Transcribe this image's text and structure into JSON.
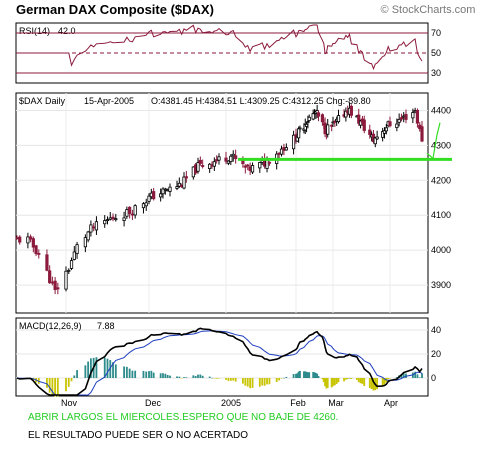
{
  "header": {
    "title": "German DAX Composite ($DAX)",
    "watermark": "© StockCharts.com"
  },
  "rsi_panel": {
    "label": "RSI(14)",
    "value": "42.0",
    "levels": [
      "70",
      "50",
      "30"
    ]
  },
  "price_panel": {
    "name": "$DAX Daily",
    "date": "15-Apr-2005",
    "quote": "O:4381.45 H:4384.51 L:4309.25 C:4312.25 Chg:-89.80",
    "y_ticks": [
      "4400",
      "4300",
      "4200",
      "4100",
      "4000",
      "3900"
    ]
  },
  "macd_panel": {
    "label": "MACD(12,26,9)",
    "value": "7.88",
    "y_ticks": [
      "40",
      "20",
      "0"
    ]
  },
  "x_axis": {
    "labels": [
      "Nov",
      "Dec",
      "2005",
      "Feb",
      "Mar",
      "Apr"
    ]
  },
  "annotations": {
    "line1": "ABRIR LARGOS EL MIERCOLES.ESPERO QUE NO BAJE DE 4260.",
    "line2": "EL RESULTADO PUEDE SER O NO ACERTADO",
    "line1_color": "#22cc22",
    "line2_color": "#000000"
  },
  "colors": {
    "up_candle": "#000000",
    "down_candle": "#8b1a3c",
    "support_line": "#33dd22",
    "rsi_line": "#8b1a3c",
    "macd_line": "#000000",
    "signal_line": "#1f3fbf",
    "histogram": "#2e8b8b",
    "histogram_alt": "#c8c400"
  },
  "chart_data": {
    "type": "candlestick",
    "title": "German DAX Composite ($DAX)",
    "x_labels": [
      "Nov",
      "Dec",
      "2005",
      "Feb",
      "Mar",
      "Apr"
    ],
    "price": {
      "ylim": [
        3820,
        4450
      ],
      "support_level": 4260,
      "last_close": 4312.25,
      "close_path_anchors": [
        {
          "x": "Oct 18 2004",
          "y": 4030
        },
        {
          "x": "Oct 22 2004",
          "y": 3990
        },
        {
          "x": "Oct 27 2004",
          "y": 3900
        },
        {
          "x": "Oct 28 2004",
          "y": 3880
        },
        {
          "x": "Nov 2 2004",
          "y": 3950
        },
        {
          "x": "Nov 5 2004",
          "y": 4010
        },
        {
          "x": "Nov 10 2004",
          "y": 4060
        },
        {
          "x": "Nov 17 2004",
          "y": 4090
        },
        {
          "x": "Nov 24 2004",
          "y": 4110
        },
        {
          "x": "Dec 1 2004",
          "y": 4150
        },
        {
          "x": "Dec 8 2004",
          "y": 4170
        },
        {
          "x": "Dec 15 2004",
          "y": 4190
        },
        {
          "x": "Dec 22 2004",
          "y": 4240
        },
        {
          "x": "Dec 29 2004",
          "y": 4255
        },
        {
          "x": "Jan 5 2005",
          "y": 4270
        },
        {
          "x": "Jan 12 2005",
          "y": 4230
        },
        {
          "x": "Jan 19 2005",
          "y": 4250
        },
        {
          "x": "Jan 26 2005",
          "y": 4290
        },
        {
          "x": "Feb 2 2005",
          "y": 4330
        },
        {
          "x": "Feb 9 2005",
          "y": 4370
        },
        {
          "x": "Feb 16 2005",
          "y": 4395
        },
        {
          "x": "Feb 23 2005",
          "y": 4345
        },
        {
          "x": "Mar 2 2005",
          "y": 4360
        },
        {
          "x": "Mar 9 2005",
          "y": 4405
        },
        {
          "x": "Mar 16 2005",
          "y": 4365
        },
        {
          "x": "Mar 23 2005",
          "y": 4315
        },
        {
          "x": "Mar 30 2005",
          "y": 4355
        },
        {
          "x": "Apr 6 2005",
          "y": 4375
        },
        {
          "x": "Apr 12 2005",
          "y": 4400
        },
        {
          "x": "Apr 15 2005",
          "y": 4312
        }
      ]
    },
    "rsi": {
      "levels": [
        70,
        50,
        30
      ],
      "last": 42.0
    },
    "macd": {
      "ylim": [
        -15,
        50
      ],
      "last": 7.88
    }
  }
}
